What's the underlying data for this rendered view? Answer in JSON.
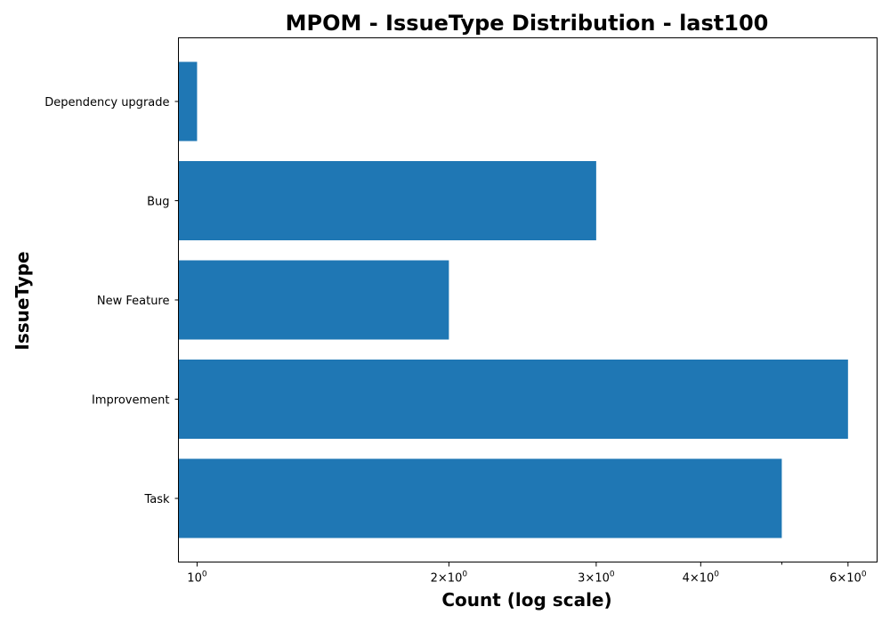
{
  "chart_data": {
    "type": "bar",
    "orientation": "horizontal",
    "title": "MPOM - IssueType Distribution - last100",
    "xlabel": "Count (log scale)",
    "ylabel": "IssueType",
    "xscale": "log",
    "xlim": [
      0.95,
      6.5
    ],
    "categories": [
      "Task",
      "Improvement",
      "New Feature",
      "Bug",
      "Dependency upgrade"
    ],
    "values": [
      5,
      6,
      2,
      3,
      1
    ],
    "bar_color": "#1f77b4",
    "grid": false,
    "legend": "none",
    "x_ticks": [
      {
        "value": 1,
        "base": "10",
        "exp": "0",
        "prefix": ""
      },
      {
        "value": 2,
        "base": "2×10",
        "exp": "0",
        "prefix": ""
      },
      {
        "value": 3,
        "base": "3×10",
        "exp": "0",
        "prefix": ""
      },
      {
        "value": 4,
        "base": "4×10",
        "exp": "0",
        "prefix": ""
      },
      {
        "value": 6,
        "base": "6×10",
        "exp": "0",
        "prefix": ""
      }
    ],
    "x_minor_ticks": [
      5
    ]
  }
}
